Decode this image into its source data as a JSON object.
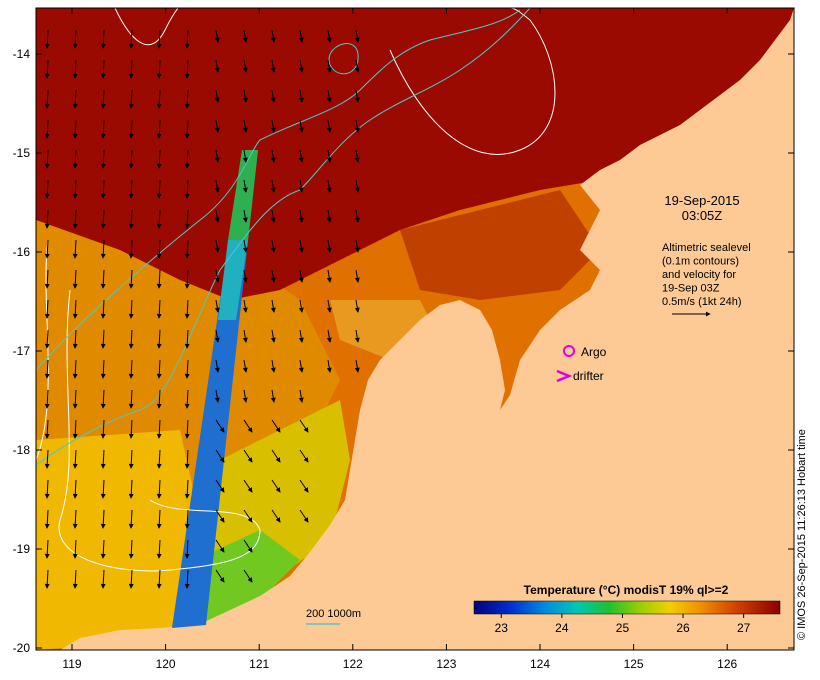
{
  "map": {
    "date_line1": "19-Sep-2015",
    "date_line2": "03:05Z",
    "legend_lines": [
      "Altimetric sealevel",
      "(0.1m contours)",
      "and velocity for",
      "19-Sep 03Z",
      "0.5m/s (1kt 24h)"
    ],
    "argo_label": "Argo",
    "drifter_label": "drifter",
    "depth_label": "200  1000m",
    "colorbar_title": "Temperature (°C) modisT 19% ql>=2",
    "colorbar_ticks": [
      "23",
      "24",
      "25",
      "26",
      "27"
    ],
    "lat_ticks": [
      "-14",
      "-15",
      "-16",
      "-17",
      "-18",
      "-19",
      "-20"
    ],
    "lon_ticks": [
      "119",
      "120",
      "121",
      "122",
      "123",
      "124",
      "125",
      "126"
    ],
    "credit": "© IMOS 26-Sep-2015 11:26:13 Hobart time"
  },
  "colors": {
    "land": "#fdc994",
    "warm": "#9a0a00",
    "contour_isobath": "#4ec9c9",
    "contour_sealevel": "#ffffff",
    "argo_marker": "#e000e0",
    "drifter_marker": "#e000e0"
  }
}
